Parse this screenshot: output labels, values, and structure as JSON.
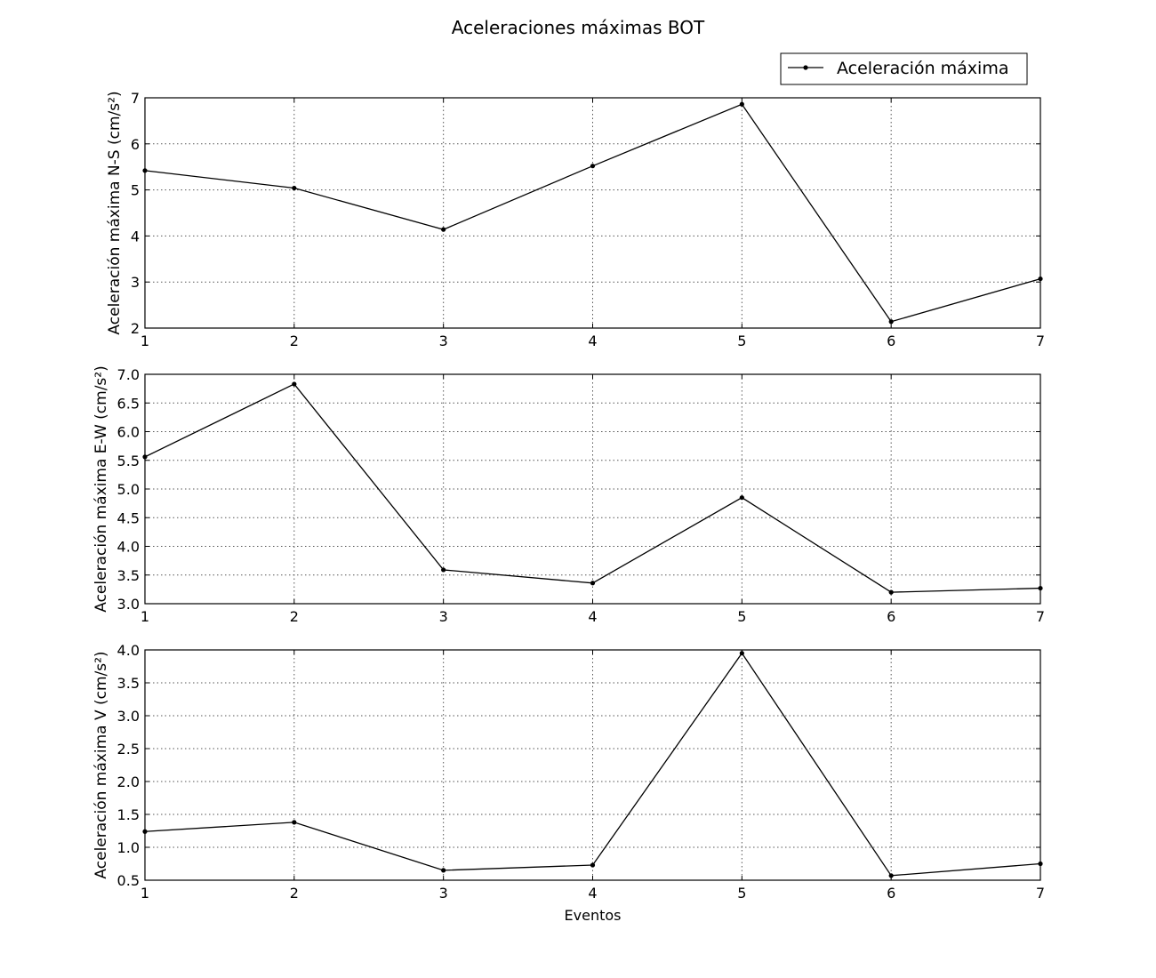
{
  "figure": {
    "title": "Aceleraciones máximas BOT"
  },
  "legend": {
    "label": "Aceleración máxima",
    "placement": "top-right"
  },
  "colors": {
    "line": "#000000",
    "grid": "#555555",
    "background": "#ffffff"
  },
  "chart_data": [
    {
      "type": "line",
      "title": "",
      "xlabel": "",
      "ylabel": "Aceleración máxima N-S (cm/s²)",
      "x": [
        1,
        2,
        3,
        4,
        5,
        6,
        7
      ],
      "series": [
        {
          "name": "Aceleración máxima",
          "values": [
            5.42,
            5.04,
            4.14,
            5.52,
            6.86,
            2.14,
            3.07
          ]
        }
      ],
      "xlim": [
        1,
        7
      ],
      "ylim": [
        2,
        7
      ],
      "xticks": [
        "1",
        "2",
        "3",
        "4",
        "5",
        "6",
        "7"
      ],
      "yticks": [
        "2",
        "3",
        "4",
        "5",
        "6",
        "7"
      ],
      "grid": true
    },
    {
      "type": "line",
      "title": "",
      "xlabel": "",
      "ylabel": "Aceleración máxima E-W (cm/s²)",
      "x": [
        1,
        2,
        3,
        4,
        5,
        6,
        7
      ],
      "series": [
        {
          "name": "Aceleración máxima",
          "values": [
            5.56,
            6.83,
            3.59,
            3.36,
            4.85,
            3.2,
            3.27
          ]
        }
      ],
      "xlim": [
        1,
        7
      ],
      "ylim": [
        3,
        7
      ],
      "xticks": [
        "1",
        "2",
        "3",
        "4",
        "5",
        "6",
        "7"
      ],
      "yticks": [
        "3.0",
        "3.5",
        "4.0",
        "4.5",
        "5.0",
        "5.5",
        "6.0",
        "6.5",
        "7.0"
      ],
      "grid": true
    },
    {
      "type": "line",
      "title": "",
      "xlabel": "Eventos",
      "ylabel": "Aceleración máxima V (cm/s²)",
      "x": [
        1,
        2,
        3,
        4,
        5,
        6,
        7
      ],
      "series": [
        {
          "name": "Aceleración máxima",
          "values": [
            1.24,
            1.38,
            0.65,
            0.73,
            3.95,
            0.57,
            0.75
          ]
        }
      ],
      "xlim": [
        1,
        7
      ],
      "ylim": [
        0.5,
        4
      ],
      "xticks": [
        "1",
        "2",
        "3",
        "4",
        "5",
        "6",
        "7"
      ],
      "yticks": [
        "0.5",
        "1.0",
        "1.5",
        "2.0",
        "2.5",
        "3.0",
        "3.5",
        "4.0"
      ],
      "grid": true
    }
  ]
}
